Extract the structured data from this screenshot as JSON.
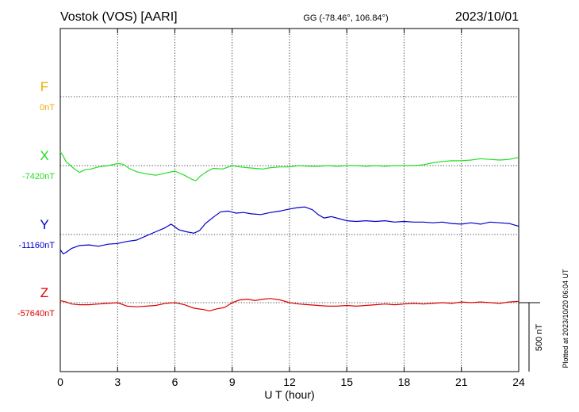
{
  "header": {
    "station": "Vostok (VOS)  [AARI]",
    "coords": "GG (-78.46°, 106.84°)",
    "date": "2023/10/01"
  },
  "footer": {
    "plotted": "Plotted at 2023/10/20 06:04 UT"
  },
  "colors": {
    "F": "#f0a800",
    "X": "#22dd22",
    "Y": "#0000cc",
    "Z": "#dd0000"
  },
  "chart_data": {
    "type": "line",
    "xlabel": "U T (hour)",
    "xlim": [
      0,
      24
    ],
    "xticks": [
      0,
      3,
      6,
      9,
      12,
      15,
      18,
      21,
      24
    ],
    "xtick_labels": [
      "0",
      "3",
      "6",
      "9",
      "12",
      "15",
      "18",
      "21",
      "24"
    ],
    "scale_bar_nT": 500,
    "scale_bar_label": "500 nT",
    "grid": true,
    "series": [
      {
        "name": "F",
        "baseline_label": "0nT",
        "baseline": 0,
        "x": [],
        "y": []
      },
      {
        "name": "X",
        "baseline_label": "-7420nT",
        "baseline": -7420,
        "x": [
          0,
          0.15,
          0.3,
          0.5,
          0.7,
          1.0,
          1.3,
          1.6,
          2.0,
          2.5,
          3.0,
          3.3,
          3.6,
          4.0,
          4.5,
          5.0,
          5.5,
          6.0,
          6.5,
          6.9,
          7.1,
          7.3,
          7.6,
          8.0,
          8.5,
          9.0,
          9.4,
          9.8,
          10.2,
          10.6,
          11.0,
          11.5,
          12.0,
          12.5,
          13.0,
          13.5,
          14.0,
          14.5,
          15.0,
          15.5,
          16.0,
          16.5,
          17.0,
          17.5,
          18.0,
          18.5,
          19.0,
          19.5,
          20.0,
          20.5,
          21.0,
          21.5,
          22.0,
          22.5,
          23.0,
          23.5,
          24.0
        ],
        "y": [
          -7320,
          -7350,
          -7390,
          -7415,
          -7440,
          -7470,
          -7450,
          -7445,
          -7430,
          -7420,
          -7405,
          -7410,
          -7440,
          -7465,
          -7480,
          -7490,
          -7475,
          -7460,
          -7490,
          -7520,
          -7530,
          -7500,
          -7470,
          -7440,
          -7445,
          -7420,
          -7430,
          -7435,
          -7440,
          -7445,
          -7435,
          -7430,
          -7430,
          -7420,
          -7425,
          -7425,
          -7420,
          -7425,
          -7420,
          -7420,
          -7425,
          -7420,
          -7425,
          -7420,
          -7420,
          -7420,
          -7415,
          -7400,
          -7390,
          -7385,
          -7385,
          -7380,
          -7370,
          -7375,
          -7380,
          -7375,
          -7360
        ]
      },
      {
        "name": "Y",
        "baseline_label": "-11160nT",
        "baseline": -11160,
        "x": [
          0,
          0.15,
          0.3,
          0.6,
          1.0,
          1.5,
          2.0,
          2.5,
          3.0,
          3.5,
          4.0,
          4.5,
          5.0,
          5.5,
          5.8,
          6.2,
          6.6,
          7.0,
          7.3,
          7.6,
          8.0,
          8.4,
          8.8,
          9.2,
          9.6,
          10.0,
          10.5,
          11.0,
          11.5,
          12.0,
          12.4,
          12.8,
          13.2,
          13.5,
          13.8,
          14.2,
          14.6,
          15.0,
          15.5,
          16.0,
          16.5,
          17.0,
          17.5,
          18.0,
          18.5,
          19.0,
          19.5,
          20.0,
          20.5,
          21.0,
          21.5,
          22.0,
          22.5,
          23.0,
          23.5,
          24.0
        ],
        "y": [
          -11270,
          -11300,
          -11290,
          -11260,
          -11240,
          -11235,
          -11245,
          -11230,
          -11225,
          -11210,
          -11200,
          -11170,
          -11140,
          -11110,
          -11085,
          -11125,
          -11140,
          -11150,
          -11130,
          -11080,
          -11035,
          -10995,
          -10990,
          -11005,
          -11000,
          -11010,
          -11015,
          -11000,
          -10990,
          -10975,
          -10965,
          -10960,
          -10980,
          -11015,
          -11040,
          -11030,
          -11045,
          -11060,
          -11065,
          -11060,
          -11065,
          -11060,
          -11070,
          -11065,
          -11070,
          -11070,
          -11075,
          -11070,
          -11080,
          -11085,
          -11075,
          -11085,
          -11070,
          -11075,
          -11080,
          -11100
        ]
      },
      {
        "name": "Z",
        "baseline_label": "-57640nT",
        "baseline": -57640,
        "x": [
          0,
          0.3,
          0.6,
          1.0,
          1.5,
          2.0,
          2.5,
          3.0,
          3.5,
          4.0,
          4.5,
          5.0,
          5.5,
          6.0,
          6.5,
          7.0,
          7.5,
          7.8,
          8.2,
          8.6,
          9.0,
          9.4,
          9.8,
          10.2,
          10.6,
          11.0,
          11.5,
          12.0,
          12.5,
          13.0,
          13.5,
          14.0,
          14.5,
          15.0,
          15.5,
          16.0,
          16.5,
          17.0,
          17.5,
          18.0,
          18.5,
          19.0,
          19.5,
          20.0,
          20.5,
          21.0,
          21.5,
          22.0,
          22.5,
          23.0,
          23.5,
          24.0
        ],
        "y": [
          -57625,
          -57635,
          -57650,
          -57655,
          -57655,
          -57650,
          -57645,
          -57640,
          -57665,
          -57670,
          -57665,
          -57660,
          -57645,
          -57640,
          -57655,
          -57680,
          -57690,
          -57700,
          -57685,
          -57675,
          -57640,
          -57620,
          -57615,
          -57625,
          -57615,
          -57610,
          -57620,
          -57640,
          -57650,
          -57655,
          -57660,
          -57665,
          -57665,
          -57660,
          -57665,
          -57660,
          -57655,
          -57650,
          -57655,
          -57650,
          -57645,
          -57650,
          -57645,
          -57640,
          -57645,
          -57635,
          -57640,
          -57635,
          -57640,
          -57645,
          -57635,
          -57630
        ]
      }
    ]
  }
}
